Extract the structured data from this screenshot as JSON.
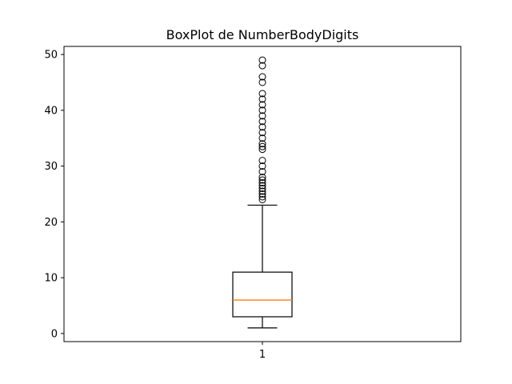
{
  "chart_data": {
    "type": "box",
    "title": "BoxPlot de NumberBodyDigits",
    "xlabel": "",
    "ylabel": "",
    "categories": [
      "1"
    ],
    "ylim": [
      -1.45,
      51.45
    ],
    "yticks": [
      0,
      10,
      20,
      30,
      40,
      50
    ],
    "grid": false,
    "series": [
      {
        "whisker_low": 1,
        "q1": 3,
        "median": 6,
        "q3": 11,
        "whisker_high": 23,
        "outliers": [
          24,
          24.5,
          25,
          25.5,
          26,
          26.5,
          27,
          27.5,
          28,
          29,
          30,
          31,
          33,
          33.5,
          34,
          35,
          36,
          37,
          38,
          39,
          40,
          41,
          42,
          43,
          45,
          46,
          48,
          49
        ]
      }
    ],
    "colors": {
      "box": "#000000",
      "median": "#ff7f0e",
      "outlier": "#000000"
    }
  }
}
